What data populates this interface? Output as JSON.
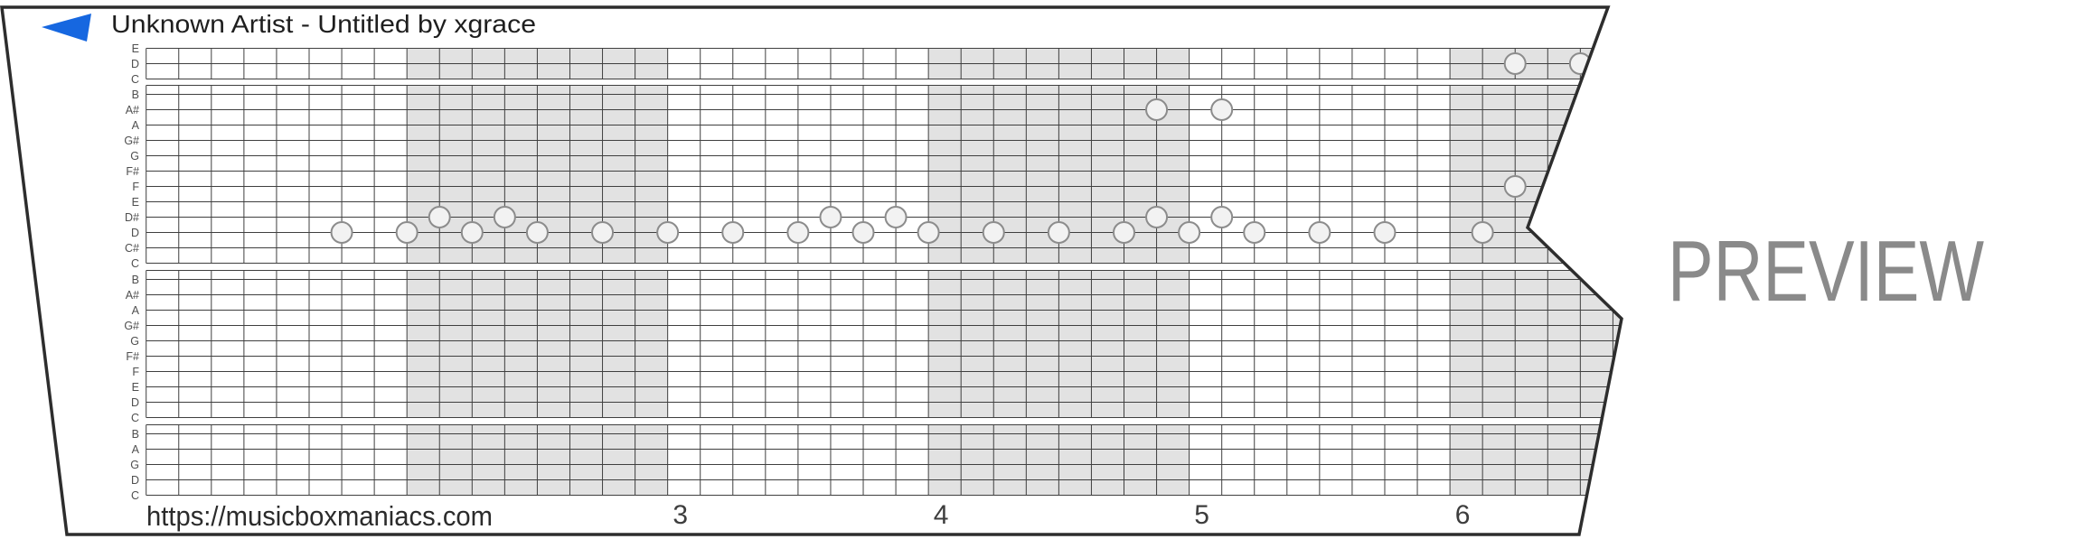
{
  "header": {
    "title": "Unknown Artist - Untitled by xgrace"
  },
  "play_icon": {
    "name": "play-triangle-icon",
    "color": "#1667E0"
  },
  "watermark": {
    "text": "PREVIEW",
    "color": "#8A8A8A"
  },
  "footer": {
    "url": "https://musicboxmaniacs.com",
    "measure_numbers": [
      "3",
      "4",
      "5",
      "6"
    ]
  },
  "chart_data": {
    "type": "piano-roll",
    "title": "Unknown Artist - Untitled by xgrace",
    "lane_sections": [
      [
        "E",
        "D",
        "C"
      ],
      [
        "B",
        "A#",
        "A",
        "G#",
        "G",
        "F#",
        "F",
        "E",
        "D#",
        "D",
        "C#",
        "C"
      ],
      [
        "B",
        "A#",
        "A",
        "G#",
        "G",
        "F#",
        "F",
        "E",
        "D",
        "C"
      ],
      [
        "B",
        "A",
        "G",
        "D",
        "C"
      ]
    ],
    "beats_per_measure": 8,
    "measures_visible": 6,
    "shaded_measures": [
      2,
      4,
      6
    ],
    "notes": [
      {
        "pitch": "D5",
        "lane": 12,
        "beat": 6
      },
      {
        "pitch": "D5",
        "lane": 12,
        "beat": 8
      },
      {
        "pitch": "D#5",
        "lane": 11,
        "beat": 9
      },
      {
        "pitch": "D5",
        "lane": 12,
        "beat": 10
      },
      {
        "pitch": "D#5",
        "lane": 11,
        "beat": 11
      },
      {
        "pitch": "D5",
        "lane": 12,
        "beat": 12
      },
      {
        "pitch": "D5",
        "lane": 12,
        "beat": 14
      },
      {
        "pitch": "D5",
        "lane": 12,
        "beat": 16
      },
      {
        "pitch": "D5",
        "lane": 12,
        "beat": 18
      },
      {
        "pitch": "D5",
        "lane": 12,
        "beat": 20
      },
      {
        "pitch": "D#5",
        "lane": 11,
        "beat": 21
      },
      {
        "pitch": "D5",
        "lane": 12,
        "beat": 22
      },
      {
        "pitch": "D#5",
        "lane": 11,
        "beat": 23
      },
      {
        "pitch": "D5",
        "lane": 12,
        "beat": 24
      },
      {
        "pitch": "D5",
        "lane": 12,
        "beat": 26
      },
      {
        "pitch": "D5",
        "lane": 12,
        "beat": 28
      },
      {
        "pitch": "D5",
        "lane": 12,
        "beat": 30
      },
      {
        "pitch": "D#5",
        "lane": 11,
        "beat": 31
      },
      {
        "pitch": "A#5",
        "lane": 4,
        "beat": 31
      },
      {
        "pitch": "D5",
        "lane": 12,
        "beat": 32
      },
      {
        "pitch": "D#5",
        "lane": 11,
        "beat": 33
      },
      {
        "pitch": "A#5",
        "lane": 4,
        "beat": 33
      },
      {
        "pitch": "D5",
        "lane": 12,
        "beat": 34
      },
      {
        "pitch": "D5",
        "lane": 12,
        "beat": 36
      },
      {
        "pitch": "D5",
        "lane": 12,
        "beat": 38
      },
      {
        "pitch": "D5",
        "lane": 12,
        "beat": 41
      },
      {
        "pitch": "F5",
        "lane": 9,
        "beat": 42
      },
      {
        "pitch": "D6",
        "lane": 1,
        "beat": 42
      },
      {
        "pitch": "D6",
        "lane": 1,
        "beat": 44
      }
    ],
    "colors": {
      "shaded_measure": "#E2E2E2",
      "grid_line": "#3F3F3F",
      "note_fill": "#F2F2F2",
      "note_stroke": "#8C8C8C",
      "paper_edge": "#2D2D2D",
      "label": "#4F4F4F"
    }
  }
}
